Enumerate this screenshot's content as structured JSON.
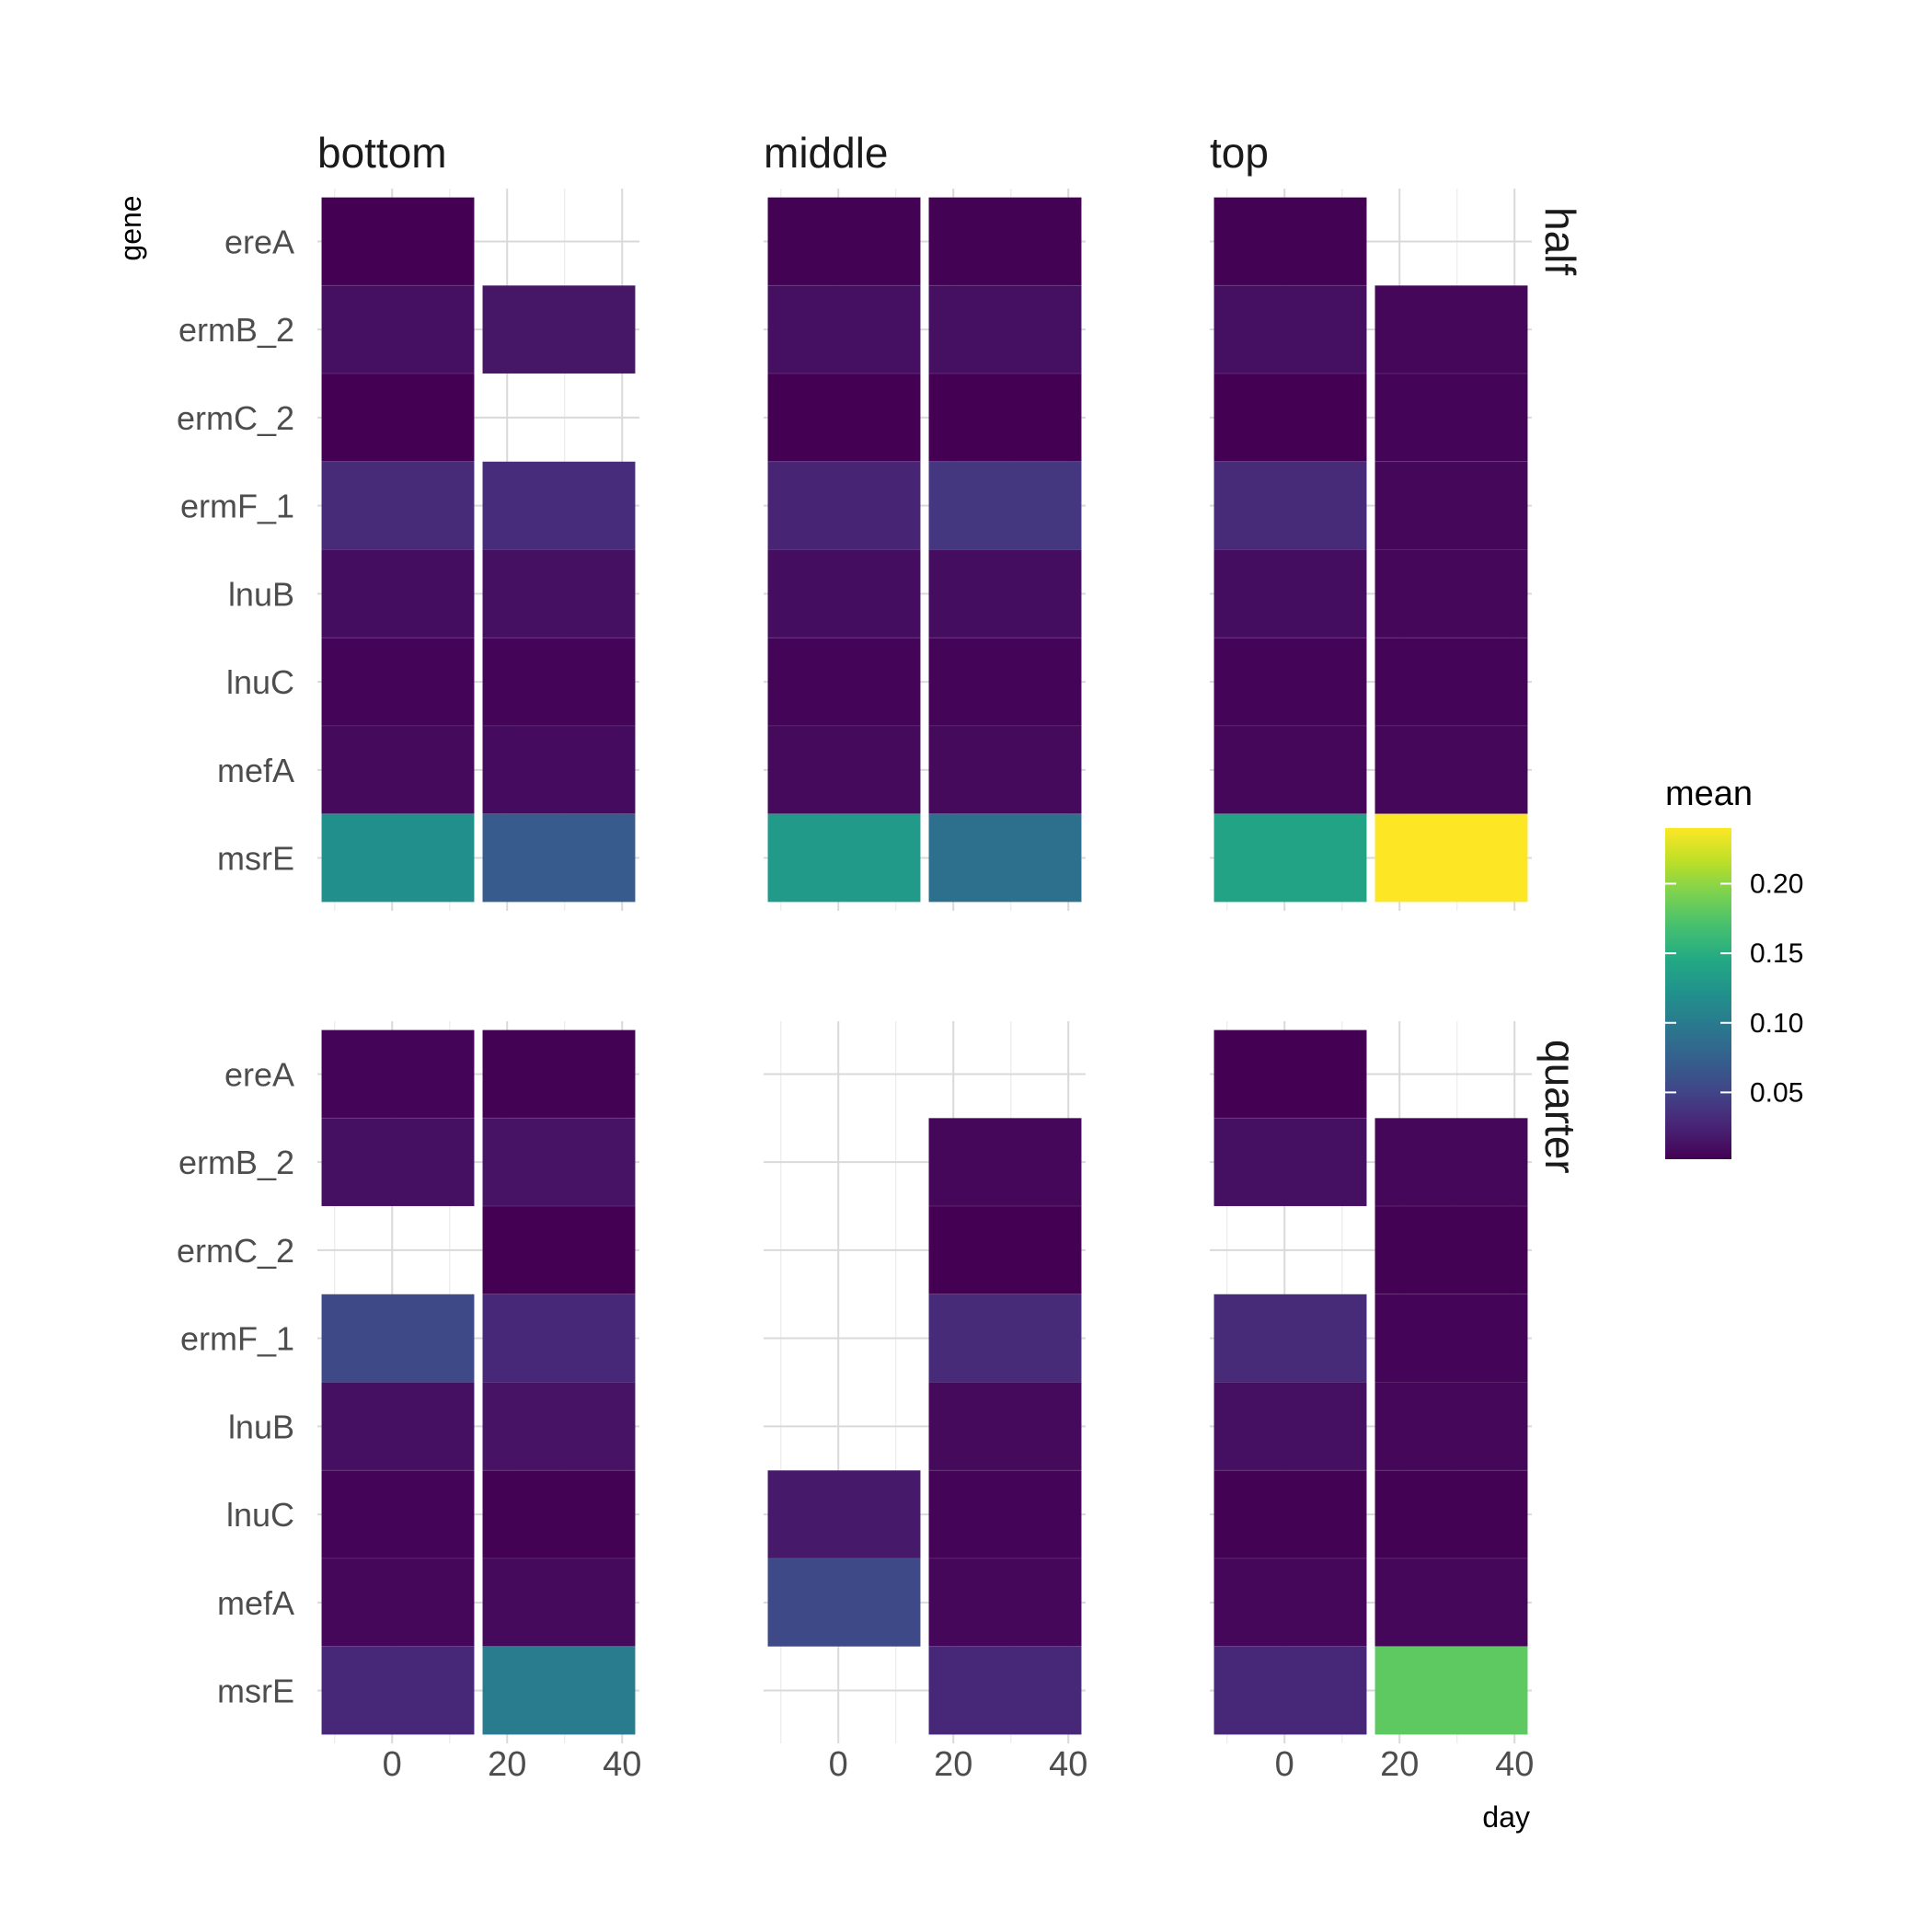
{
  "chart_data": {
    "type": "heatmap",
    "facets": {
      "columns": [
        "bottom",
        "middle",
        "top"
      ],
      "rows": [
        "half",
        "quarter"
      ]
    },
    "genes": [
      "ereA",
      "ermB_2",
      "ermC_2",
      "ermF_1",
      "lnuB",
      "lnuC",
      "mefA",
      "msrE"
    ],
    "x_ticks": [
      0,
      20,
      40
    ],
    "x_limits": [
      -13,
      43
    ],
    "tile_days": [
      1,
      29
    ],
    "ylabel": "gene",
    "xlabel": "day",
    "legend": {
      "title": "mean",
      "ticks": [
        0.05,
        0.1,
        0.15,
        0.2
      ],
      "tick_labels": [
        "0.05",
        "0.10",
        "0.15",
        "0.20"
      ],
      "range": [
        0.002,
        0.24
      ],
      "position": "right",
      "colormap": "viridis"
    },
    "panels": [
      {
        "row": "half",
        "col": "bottom",
        "values": [
          [
            0.002,
            null
          ],
          [
            0.012,
            0.016
          ],
          [
            0.002,
            null
          ],
          [
            0.03,
            0.032
          ],
          [
            0.01,
            0.012
          ],
          [
            0.004,
            0.004
          ],
          [
            0.008,
            0.009
          ],
          [
            0.12,
            0.07
          ]
        ]
      },
      {
        "row": "half",
        "col": "middle",
        "values": [
          [
            0.003,
            0.003
          ],
          [
            0.012,
            0.012
          ],
          [
            0.002,
            0.002
          ],
          [
            0.026,
            0.04
          ],
          [
            0.01,
            0.01
          ],
          [
            0.004,
            0.004
          ],
          [
            0.008,
            0.008
          ],
          [
            0.13,
            0.09
          ]
        ]
      },
      {
        "row": "half",
        "col": "top",
        "values": [
          [
            0.003,
            null
          ],
          [
            0.012,
            0.006
          ],
          [
            0.002,
            0.004
          ],
          [
            0.03,
            0.006
          ],
          [
            0.01,
            0.006
          ],
          [
            0.004,
            0.004
          ],
          [
            0.006,
            0.006
          ],
          [
            0.14,
            0.24
          ]
        ]
      },
      {
        "row": "quarter",
        "col": "bottom",
        "values": [
          [
            0.004,
            0.003
          ],
          [
            0.012,
            0.014
          ],
          [
            null,
            0.002
          ],
          [
            0.055,
            0.028
          ],
          [
            0.012,
            0.014
          ],
          [
            0.004,
            0.003
          ],
          [
            0.006,
            0.008
          ],
          [
            0.028,
            0.1
          ]
        ]
      },
      {
        "row": "quarter",
        "col": "middle",
        "values": [
          [
            null,
            null
          ],
          [
            null,
            0.006
          ],
          [
            null,
            0.002
          ],
          [
            null,
            0.03
          ],
          [
            null,
            0.008
          ],
          [
            0.018,
            0.004
          ],
          [
            0.055,
            0.006
          ],
          [
            null,
            0.028
          ]
        ]
      },
      {
        "row": "quarter",
        "col": "top",
        "values": [
          [
            0.002,
            null
          ],
          [
            0.012,
            0.006
          ],
          [
            null,
            0.003
          ],
          [
            0.03,
            0.004
          ],
          [
            0.012,
            0.006
          ],
          [
            0.003,
            0.003
          ],
          [
            0.006,
            0.006
          ],
          [
            0.028,
            0.18
          ]
        ]
      }
    ]
  }
}
